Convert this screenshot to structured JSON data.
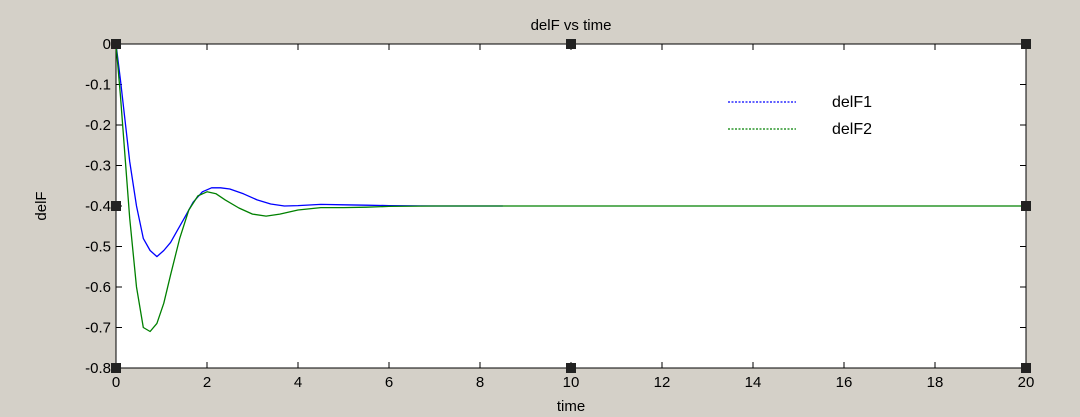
{
  "chart_data": {
    "type": "line",
    "title": "delF vs time",
    "xlabel": "time",
    "ylabel": "delF",
    "xlim": [
      0,
      20
    ],
    "ylim": [
      -0.8,
      0
    ],
    "xticks": [
      0,
      2,
      4,
      6,
      8,
      10,
      12,
      14,
      16,
      18,
      20
    ],
    "yticks": [
      0,
      -0.1,
      -0.2,
      -0.3,
      -0.4,
      -0.5,
      -0.6,
      -0.7,
      -0.8
    ],
    "xtick_labels": [
      "0",
      "2",
      "4",
      "6",
      "8",
      "10",
      "12",
      "14",
      "16",
      "18",
      "20"
    ],
    "ytick_labels": [
      "0",
      "-0.1",
      "-0.2",
      "-0.3",
      "-0.4",
      "-0.5",
      "-0.6",
      "-0.7",
      "-0.8"
    ],
    "grid": false,
    "legend_position": "top-right",
    "series": [
      {
        "name": "delF1",
        "color": "#0000ff",
        "x": [
          0,
          0.1,
          0.2,
          0.3,
          0.45,
          0.6,
          0.75,
          0.9,
          1.05,
          1.2,
          1.35,
          1.5,
          1.7,
          1.9,
          2.1,
          2.3,
          2.5,
          2.8,
          3.1,
          3.4,
          3.7,
          4.0,
          4.5,
          5.0,
          5.5,
          6.0,
          7.0,
          8.0,
          8.5
        ],
        "y": [
          0,
          -0.09,
          -0.19,
          -0.29,
          -0.4,
          -0.48,
          -0.51,
          -0.525,
          -0.51,
          -0.49,
          -0.46,
          -0.43,
          -0.39,
          -0.365,
          -0.355,
          -0.355,
          -0.358,
          -0.37,
          -0.385,
          -0.395,
          -0.4,
          -0.399,
          -0.396,
          -0.397,
          -0.398,
          -0.399,
          -0.4,
          -0.4,
          -0.4
        ]
      },
      {
        "name": "delF2",
        "color": "#008000",
        "x": [
          0,
          0.1,
          0.2,
          0.3,
          0.45,
          0.6,
          0.75,
          0.9,
          1.05,
          1.2,
          1.4,
          1.6,
          1.8,
          2.0,
          2.2,
          2.4,
          2.7,
          3.0,
          3.3,
          3.6,
          4.0,
          4.5,
          5.0,
          5.5,
          6.0,
          7.0,
          8.0,
          10.0,
          14.0,
          20.0
        ],
        "y": [
          0,
          -0.13,
          -0.28,
          -0.43,
          -0.6,
          -0.7,
          -0.71,
          -0.69,
          -0.64,
          -0.57,
          -0.48,
          -0.41,
          -0.375,
          -0.365,
          -0.37,
          -0.385,
          -0.405,
          -0.42,
          -0.425,
          -0.42,
          -0.41,
          -0.404,
          -0.404,
          -0.403,
          -0.401,
          -0.4,
          -0.4,
          -0.4,
          -0.4,
          -0.4
        ]
      }
    ]
  }
}
